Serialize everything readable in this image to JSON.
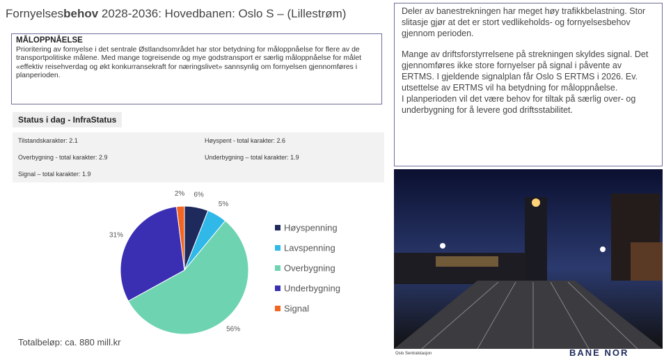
{
  "header": {
    "title_start": "Fornyelses",
    "title_bold": "behov",
    "title_end": " 2028-2036: Hovedbanen: Oslo S – (Lillestrøm)"
  },
  "goal": {
    "heading": "MÅLOPPNÅELSE",
    "text": "Prioritering av fornyelse i det sentrale Østlandsområdet har stor betydning for måloppnåelse for flere av de transportpolitiske målene. Med mange togreisende og mye godstransport er særlig måloppnåelse for målet «effektiv reisehverdag og økt konkurransekraft for næringslivet» sannsynlig om fornyelsen gjennomføres i planperioden."
  },
  "status": {
    "heading": "Status i dag - InfraStatus",
    "items": [
      "Tilstandskarakter: 2.1",
      "Høyspent - total karakter: 2.6",
      "Overbygning - total karakter: 2.9",
      "Underbygning – total karakter: 1.9",
      "Signal – total karakter: 1.9"
    ]
  },
  "chart_data": {
    "type": "pie",
    "categories": [
      "Høyspenning",
      "Lavspenning",
      "Overbygning",
      "Underbygning",
      "Signal"
    ],
    "values": [
      6,
      5,
      56,
      31,
      2
    ],
    "value_labels": [
      "6%",
      "5%",
      "56%",
      "31%",
      "2%"
    ],
    "colors": [
      "#1f2a5c",
      "#2fb8e8",
      "#6dd3b0",
      "#3a2fb3",
      "#f26522"
    ]
  },
  "total": "Totalbeløp: ca. 880 mill.kr",
  "notes": {
    "paragraphs": [
      "Deler av banestrekningen har meget høy trafikkbelastning. Stor slitasje gjør at det er stort vedlikeholds- og fornyelsesbehov gjennom perioden.",
      "Mange av driftsforstyrrelsene på strekningen skyldes signal. Det gjennomføres ikke store fornyelser på signal i påvente av ERTMS. I gjeldende signalplan får Oslo S ERTMS i 2026. Ev. utsettelse av ERTMS vil ha betydning for måloppnåelse.",
      "I planperioden vil det være behov for tiltak på særlig over- og underbygning for å levere god driftsstabilitet."
    ]
  },
  "photo": {
    "caption": "Oslo Sentralstasjon"
  },
  "logo": "BANE NOR"
}
